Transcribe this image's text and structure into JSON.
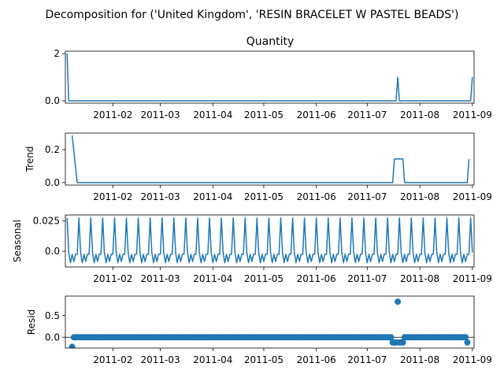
{
  "suptitle": "Decomposition for ('United Kingdom', 'RESIN BRACELET W PASTEL BEADS')",
  "colors": {
    "series": "#1f77b4"
  },
  "x_ticks": [
    "2011-02",
    "2011-03",
    "2011-04",
    "2011-05",
    "2011-06",
    "2011-07",
    "2011-08",
    "2011-09"
  ],
  "chart_data": [
    {
      "type": "line",
      "panel": "observed",
      "title": "Quantity",
      "ylabel": "",
      "ylim": [
        -0.1,
        2.1
      ],
      "yticks": [
        0,
        2
      ],
      "x_start": "2011-01-05",
      "x_end": "2011-09-01",
      "events": [
        {
          "date": "2011-01-05",
          "value": 2
        },
        {
          "date": "2011-07-19",
          "value": 1
        },
        {
          "date": "2011-09-01",
          "value": 1
        }
      ],
      "baseline": 0
    },
    {
      "type": "line",
      "panel": "trend",
      "title": "",
      "ylabel": "Trend",
      "ylim": [
        -0.015,
        0.3
      ],
      "yticks": [
        0.0,
        0.2
      ],
      "segments": [
        [
          [
            "2011-01-08",
            0.286
          ],
          [
            "2011-01-11",
            0.0
          ],
          [
            "2011-07-16",
            0.0
          ],
          [
            "2011-07-17",
            0.143
          ],
          [
            "2011-07-22",
            0.143
          ],
          [
            "2011-07-23",
            0.0
          ],
          [
            "2011-08-29",
            0.0
          ],
          [
            "2011-08-30",
            0.143
          ]
        ]
      ]
    },
    {
      "type": "line",
      "panel": "seasonal",
      "title": "",
      "ylabel": "Seasonal",
      "ylim": [
        -0.013,
        0.03
      ],
      "yticks": [
        0.0,
        0.025
      ],
      "period_days": 7,
      "first_peak": "2011-01-05",
      "weekly_pattern": [
        0.0275,
        -0.001,
        -0.0095,
        -0.0025,
        -0.0085,
        -0.0025,
        -0.0025
      ]
    },
    {
      "type": "scatter",
      "panel": "resid",
      "title": "",
      "ylabel": "Resid",
      "ylim": [
        -0.25,
        0.95
      ],
      "yticks": [
        0.0,
        0.5
      ],
      "x_start": "2011-01-08",
      "x_end": "2011-08-29",
      "default_value": 0.0,
      "special": [
        {
          "date": "2011-01-08",
          "value": -0.22
        },
        {
          "date": "2011-07-16",
          "value": -0.12
        },
        {
          "date": "2011-07-17",
          "value": -0.12
        },
        {
          "date": "2011-07-18",
          "value": -0.12
        },
        {
          "date": "2011-07-19",
          "value": 0.82
        },
        {
          "date": "2011-07-20",
          "value": -0.12
        },
        {
          "date": "2011-07-21",
          "value": -0.12
        },
        {
          "date": "2011-07-22",
          "value": -0.12
        },
        {
          "date": "2011-08-29",
          "value": -0.12
        }
      ]
    }
  ]
}
